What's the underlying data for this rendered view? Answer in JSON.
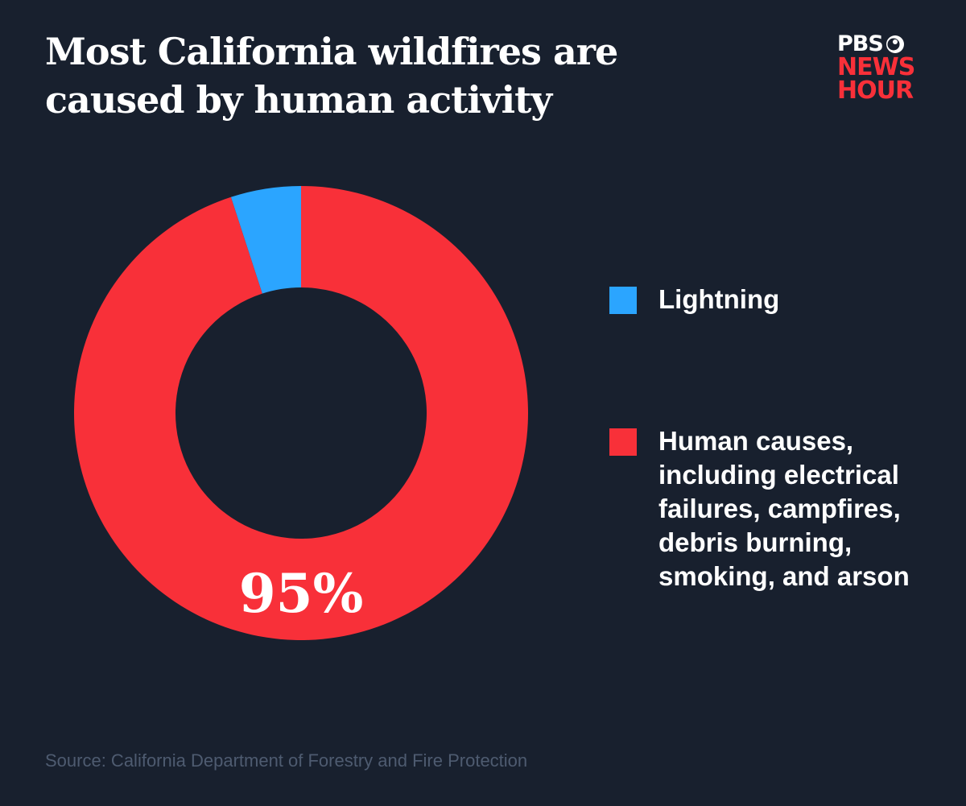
{
  "header": {
    "title": "Most California wildfires are caused by human activity"
  },
  "logo": {
    "line1": "PBS",
    "line2": "NEWS",
    "line3": "HOUR"
  },
  "colors": {
    "background": "#18202e",
    "lightning": "#2ba5ff",
    "human": "#f83039",
    "logo_red": "#f83039"
  },
  "chart_data": {
    "type": "pie",
    "style": "donut",
    "title": "Most California wildfires are caused by human activity",
    "slices": [
      {
        "name": "Lightning",
        "value": 5,
        "color": "#2ba5ff"
      },
      {
        "name": "Human causes, including electrical failures, campfires, debris burning, smoking, and arson",
        "value": 95,
        "color": "#f83039"
      }
    ],
    "data_labels": [
      {
        "slice": "Human causes, including electrical failures, campfires, debris burning, smoking, and arson",
        "text": "95%"
      }
    ],
    "legend_position": "right"
  },
  "legend": {
    "items": [
      {
        "label": "Lightning",
        "color": "#2ba5ff"
      },
      {
        "label": "Human causes, including electrical failures, campfires, debris burning, smoking, and arson",
        "color": "#f83039"
      }
    ]
  },
  "footer": {
    "source": "Source: California Department of Forestry and Fire Protection"
  }
}
